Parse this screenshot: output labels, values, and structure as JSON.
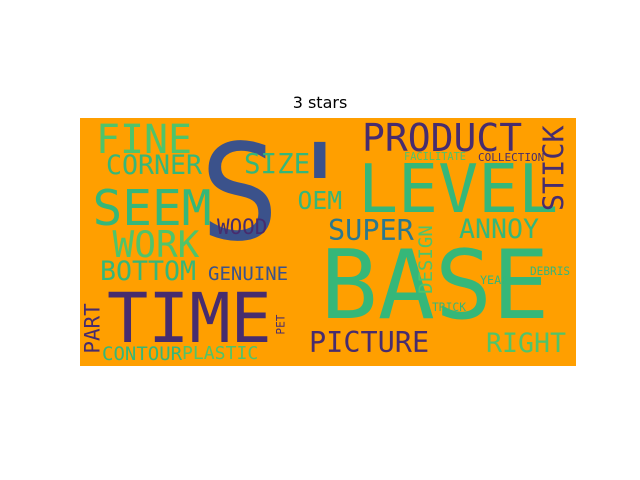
{
  "chart_data": {
    "type": "wordcloud",
    "title": "3 stars",
    "background": "#ff9f00",
    "palette": {
      "purple": "#472c6e",
      "dark_blue": "#3b528b",
      "teal": "#2a788e",
      "green": "#35b779",
      "light_green": "#4fc46a"
    },
    "words": [
      {
        "text": "BASE",
        "color": "#35b779"
      },
      {
        "text": "S'",
        "color": "#3b528b"
      },
      {
        "text": "TIME",
        "color": "#472c6e"
      },
      {
        "text": "LEVEL",
        "color": "#35b779"
      },
      {
        "text": "SEEM",
        "color": "#35b779"
      },
      {
        "text": "PRODUCT",
        "color": "#472c6e"
      },
      {
        "text": "FINE",
        "color": "#4fc46a"
      },
      {
        "text": "WORK",
        "color": "#4fc46a"
      },
      {
        "text": "CORNER",
        "color": "#35b779"
      },
      {
        "text": "SIZE",
        "color": "#35b779"
      },
      {
        "text": "STICK",
        "color": "#472c6e"
      },
      {
        "text": "BOTTOM",
        "color": "#35b779"
      },
      {
        "text": "PICTURE",
        "color": "#472c6e"
      },
      {
        "text": "SUPER",
        "color": "#2a788e"
      },
      {
        "text": "ANNOY",
        "color": "#35b779"
      },
      {
        "text": "RIGHT",
        "color": "#4fc46a"
      },
      {
        "text": "OEM",
        "color": "#35b779"
      },
      {
        "text": "WOOD",
        "color": "#472c6e"
      },
      {
        "text": "GENUINE",
        "color": "#3b528b"
      },
      {
        "text": "PART",
        "color": "#472c6e"
      },
      {
        "text": "CONTOUR",
        "color": "#35b779"
      },
      {
        "text": "PLASTIC",
        "color": "#4fc46a"
      },
      {
        "text": "DESIGN",
        "color": "#4fc46a"
      },
      {
        "text": "FACILITATE",
        "color": "#4fc46a"
      },
      {
        "text": "COLLECTION",
        "color": "#472c6e"
      },
      {
        "text": "DEBRIS",
        "color": "#35b779"
      },
      {
        "text": "YEAR",
        "color": "#35b779"
      },
      {
        "text": "TRICK",
        "color": "#35b779"
      },
      {
        "text": "PET",
        "color": "#472c6e"
      }
    ]
  }
}
